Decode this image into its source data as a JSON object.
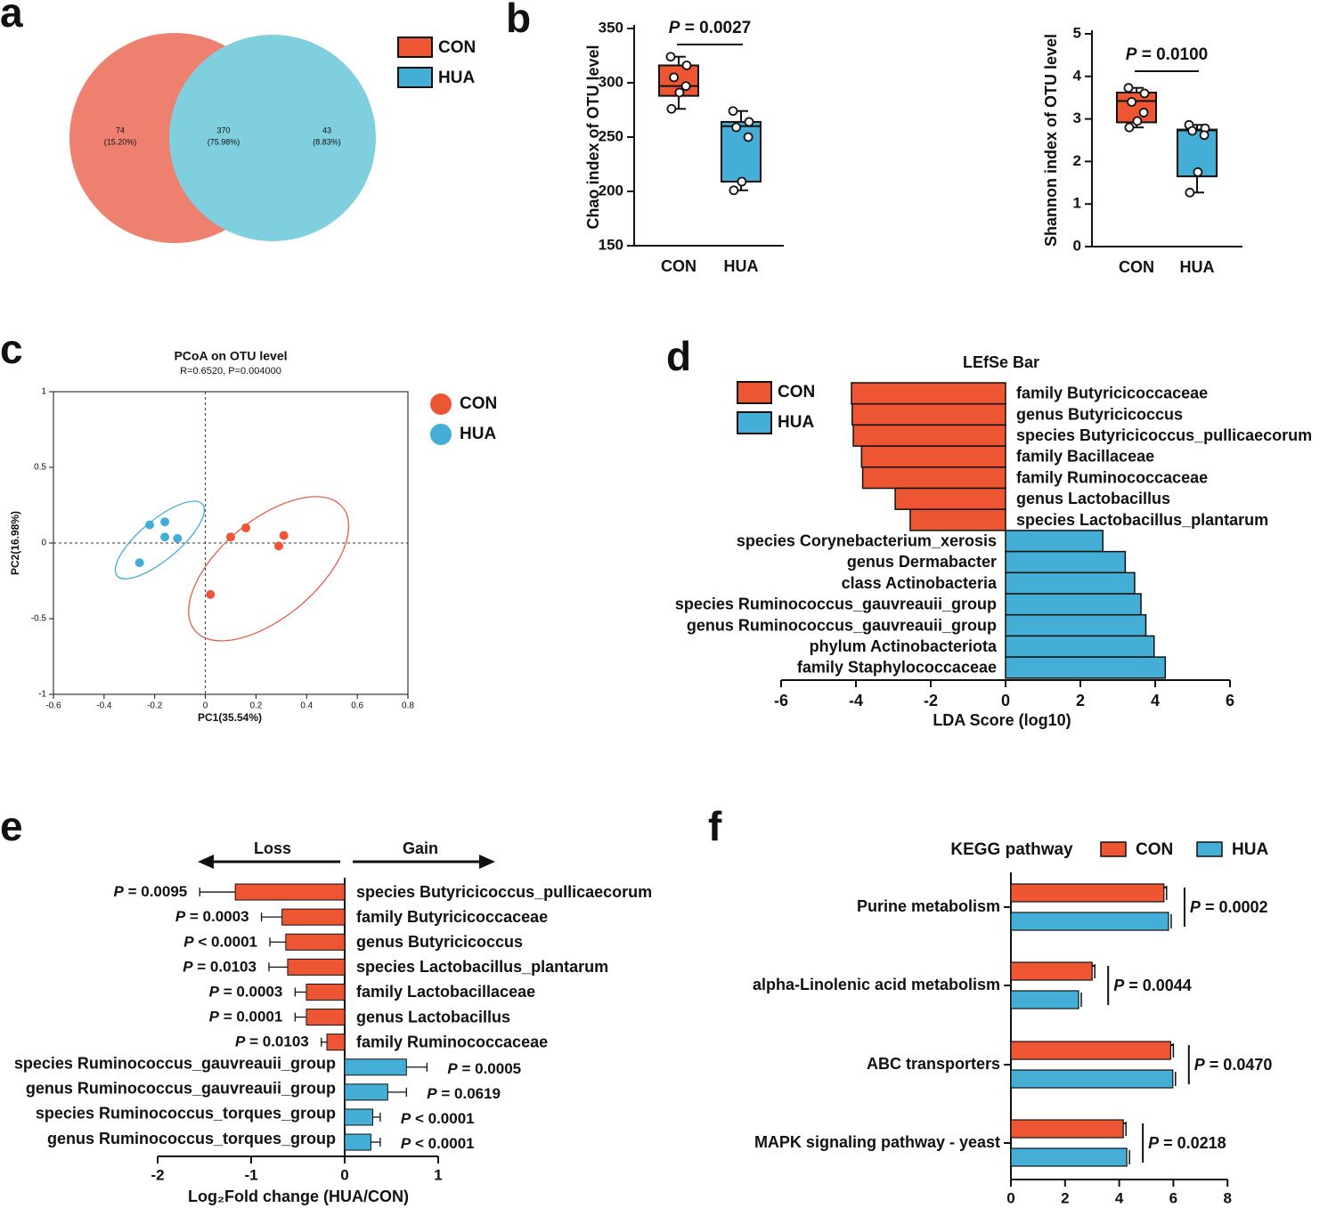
{
  "colors": {
    "con": "#EE5533",
    "hua": "#44AED6",
    "venn_con": "#EE8070",
    "venn_hua": "#80CFDF",
    "ellipse_con": "#E06050",
    "ellipse_hua": "#44AED6"
  },
  "panel_labels": [
    "a",
    "b",
    "c",
    "d",
    "e",
    "f"
  ],
  "chart_data": [
    {
      "panel": "a",
      "type": "venn",
      "legend": [
        "CON",
        "HUA"
      ],
      "regions": [
        {
          "group": "CON only",
          "count": "74",
          "percent": "(15.20%)"
        },
        {
          "group": "shared",
          "count": "370",
          "percent": "(75.98%)"
        },
        {
          "group": "HUA only",
          "count": "43",
          "percent": "(8.83%)"
        }
      ]
    },
    {
      "panel": "b1",
      "type": "boxplot",
      "ylabel": "Chao index of OTU level",
      "ylim": [
        150,
        350
      ],
      "yticks": [
        150,
        200,
        250,
        300,
        350
      ],
      "categories": [
        "CON",
        "HUA"
      ],
      "pvalue": "= 0.0027",
      "boxes": [
        {
          "name": "CON",
          "min": 276,
          "q1": 288,
          "median": 297,
          "q3": 316,
          "max": 324,
          "points": [
            324,
            316,
            305,
            297,
            291,
            276
          ]
        },
        {
          "name": "HUA",
          "min": 201,
          "q1": 209,
          "median": 260,
          "q3": 264,
          "max": 274,
          "points": [
            274,
            264,
            259,
            250,
            209,
            201
          ]
        }
      ]
    },
    {
      "panel": "b2",
      "type": "boxplot",
      "ylabel": "Shannon index of OTU level",
      "ylim": [
        0,
        5
      ],
      "yticks": [
        0,
        1,
        2,
        3,
        4,
        5
      ],
      "categories": [
        "CON",
        "HUA"
      ],
      "pvalue": "= 0.0100",
      "boxes": [
        {
          "name": "CON",
          "min": 2.8,
          "q1": 2.92,
          "median": 3.42,
          "q3": 3.62,
          "max": 3.73,
          "points": [
            3.73,
            3.6,
            3.4,
            3.15,
            2.95,
            2.8
          ]
        },
        {
          "name": "HUA",
          "min": 1.27,
          "q1": 1.65,
          "median": 2.73,
          "q3": 2.75,
          "max": 2.86,
          "points": [
            2.86,
            2.78,
            2.72,
            2.62,
            1.75,
            1.27
          ]
        }
      ]
    },
    {
      "panel": "c",
      "type": "scatter",
      "title": "PCoA on OTU level",
      "subtitle": "R=0.6520, P=0.004000",
      "xlabel": "PC1(35.54%)",
      "ylabel": "PC2(16.98%)",
      "xlim": [
        -0.6,
        0.8
      ],
      "ylim": [
        -1,
        1
      ],
      "xticks": [
        "-0.6",
        "-0.4",
        "-0.2",
        "0",
        "0.2",
        "0.4",
        "0.6",
        "0.8"
      ],
      "yticks": [
        "1",
        "0.5",
        "0",
        "-0.5",
        "-1"
      ],
      "legend": [
        "CON",
        "HUA"
      ],
      "series": [
        {
          "name": "CON",
          "points": [
            [
              0.1,
              0.04
            ],
            [
              0.16,
              0.1
            ],
            [
              0.29,
              -0.02
            ],
            [
              0.31,
              0.05
            ],
            [
              0.02,
              -0.34
            ]
          ]
        },
        {
          "name": "HUA",
          "points": [
            [
              -0.22,
              0.12
            ],
            [
              -0.16,
              0.14
            ],
            [
              -0.16,
              0.04
            ],
            [
              -0.11,
              0.03
            ],
            [
              -0.26,
              -0.13
            ]
          ]
        }
      ],
      "ellipses": [
        {
          "name": "CON",
          "cx": 0.25,
          "cy": -0.17,
          "rx": 0.38,
          "ry": 0.32,
          "angle_deg": 40
        },
        {
          "name": "HUA",
          "cx": -0.18,
          "cy": 0.02,
          "rx": 0.22,
          "ry": 0.13,
          "angle_deg": 40
        }
      ]
    },
    {
      "panel": "d",
      "type": "bar",
      "orientation": "horizontal",
      "title": "LEfSe Bar",
      "xlabel": "LDA Score (log10)",
      "xlim": [
        -6,
        6
      ],
      "xticks": [
        -6,
        -4,
        -2,
        0,
        2,
        4,
        6
      ],
      "legend": [
        "CON",
        "HUA"
      ],
      "bars": [
        {
          "label": "family Butyricicoccaceae",
          "value": -4.12,
          "group": "CON"
        },
        {
          "label": "genus Butyricicoccus",
          "value": -4.1,
          "group": "CON"
        },
        {
          "label": "species Butyricicoccus_pullicaecorum",
          "value": -4.07,
          "group": "CON"
        },
        {
          "label": "family Bacillaceae",
          "value": -3.85,
          "group": "CON"
        },
        {
          "label": "family Ruminococcaceae",
          "value": -3.82,
          "group": "CON"
        },
        {
          "label": "genus Lactobacillus",
          "value": -2.95,
          "group": "CON"
        },
        {
          "label": "species Lactobacillus_plantarum",
          "value": -2.55,
          "group": "CON"
        },
        {
          "label": "species Corynebacterium_xerosis",
          "value": 2.6,
          "group": "HUA"
        },
        {
          "label": "genus Dermabacter",
          "value": 3.2,
          "group": "HUA"
        },
        {
          "label": "class Actinobacteria",
          "value": 3.45,
          "group": "HUA"
        },
        {
          "label": "species Ruminococcus_gauvreauii_group",
          "value": 3.62,
          "group": "HUA"
        },
        {
          "label": "genus Ruminococcus_gauvreauii_group",
          "value": 3.75,
          "group": "HUA"
        },
        {
          "label": "phylum Actinobacteriota",
          "value": 3.97,
          "group": "HUA"
        },
        {
          "label": "family Staphylococcaceae",
          "value": 4.27,
          "group": "HUA"
        }
      ]
    },
    {
      "panel": "e",
      "type": "bar",
      "orientation": "horizontal",
      "xlabel": "Log₂Fold change (HUA/CON)",
      "xlim": [
        -2,
        1
      ],
      "xticks": [
        -2,
        -1,
        0,
        1
      ],
      "direction_labels": {
        "loss": "Loss",
        "gain": "Gain"
      },
      "bars": [
        {
          "label": "species Butyricicoccus_pullicaecorum",
          "value": -1.17,
          "err": 0.38,
          "group": "CON",
          "p": "= 0.0095"
        },
        {
          "label": "family Butyricicoccaceae",
          "value": -0.67,
          "err": 0.22,
          "group": "CON",
          "p": "= 0.0003"
        },
        {
          "label": "genus Butyricicoccus",
          "value": -0.63,
          "err": 0.17,
          "group": "CON",
          "p": "< 0.0001"
        },
        {
          "label": "species Lactobacillus_plantarum",
          "value": -0.61,
          "err": 0.2,
          "group": "CON",
          "p": "= 0.0103"
        },
        {
          "label": "family Lactobacillaceae",
          "value": -0.41,
          "err": 0.12,
          "group": "CON",
          "p": "= 0.0003"
        },
        {
          "label": "genus Lactobacillus",
          "value": -0.41,
          "err": 0.12,
          "group": "CON",
          "p": "= 0.0001"
        },
        {
          "label": "family Ruminococcaceae",
          "value": -0.19,
          "err": 0.06,
          "group": "CON",
          "p": "= 0.0103"
        },
        {
          "label": "species Ruminococcus_gauvreauii_group",
          "value": 0.66,
          "err": 0.22,
          "group": "HUA",
          "p": "= 0.0005"
        },
        {
          "label": "genus Ruminococcus_gauvreauii_group",
          "value": 0.46,
          "err": 0.2,
          "group": "HUA",
          "p": "= 0.0619"
        },
        {
          "label": "species Ruminococcus_torques_group",
          "value": 0.3,
          "err": 0.08,
          "group": "HUA",
          "p": "< 0.0001"
        },
        {
          "label": "genus Ruminococcus_torques_group",
          "value": 0.28,
          "err": 0.1,
          "group": "HUA",
          "p": "< 0.0001"
        }
      ]
    },
    {
      "panel": "f",
      "type": "bar",
      "orientation": "horizontal",
      "title": "KEGG pathway",
      "xlim": [
        0,
        8
      ],
      "xticks": [
        0,
        2,
        4,
        6,
        8
      ],
      "legend": [
        "CON",
        "HUA"
      ],
      "groups": [
        {
          "label": "Purine metabolism",
          "con": 5.65,
          "hua": 5.82,
          "p": "= 0.0002"
        },
        {
          "label": "alpha-Linolenic acid metabolism",
          "con": 3.0,
          "hua": 2.5,
          "p": "= 0.0044"
        },
        {
          "label": "ABC transporters",
          "con": 5.9,
          "hua": 5.98,
          "p": "= 0.0470"
        },
        {
          "label": "MAPK signaling pathway - yeast",
          "con": 4.15,
          "hua": 4.28,
          "p": "= 0.0218"
        }
      ]
    }
  ]
}
